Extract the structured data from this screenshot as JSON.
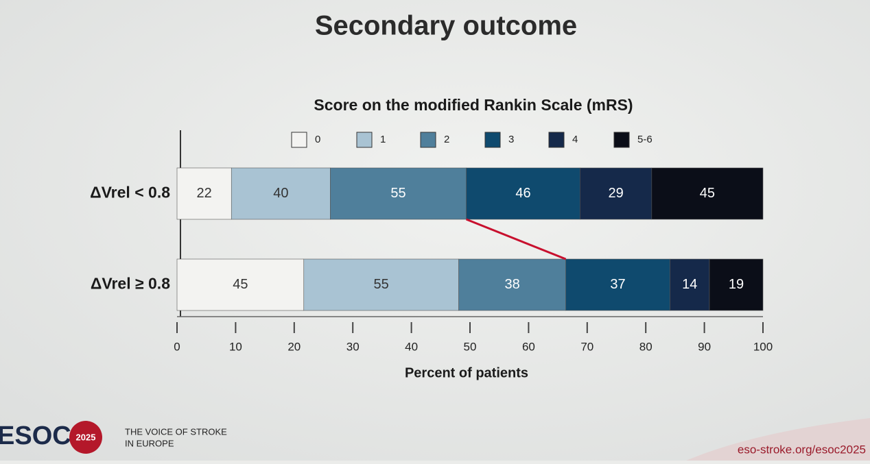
{
  "slide": {
    "title": "Secondary outcome",
    "footer": {
      "logo": "ESOC",
      "year": "2025",
      "tagline_1": "THE VOICE OF STROKE",
      "tagline_2": "IN EUROPE",
      "url": "eso-stroke.org/esoc2025"
    }
  },
  "chart_data": {
    "type": "stacked_percent_barh",
    "title": "Score on the modified Rankin Scale (mRS)",
    "xlabel": "Percent of patients",
    "categories": [
      "ΔVrel < 0.8",
      "ΔVrel ≥ 0.8"
    ],
    "series": [
      {
        "name": "0",
        "color": "#f3f3f1",
        "values": [
          22,
          45
        ]
      },
      {
        "name": "1",
        "color": "#a9c3d3",
        "values": [
          40,
          55
        ]
      },
      {
        "name": "2",
        "color": "#4f7f9b",
        "values": [
          55,
          38
        ]
      },
      {
        "name": "3",
        "color": "#0f4a6e",
        "values": [
          46,
          37
        ]
      },
      {
        "name": "4",
        "color": "#15294a",
        "values": [
          29,
          14
        ]
      },
      {
        "name": "5-6",
        "color": "#0b0e18",
        "values": [
          45,
          19
        ]
      }
    ],
    "xlim": [
      0,
      100
    ],
    "xticks": [
      0,
      10,
      20,
      30,
      40,
      50,
      60,
      70,
      80,
      90,
      100
    ]
  }
}
